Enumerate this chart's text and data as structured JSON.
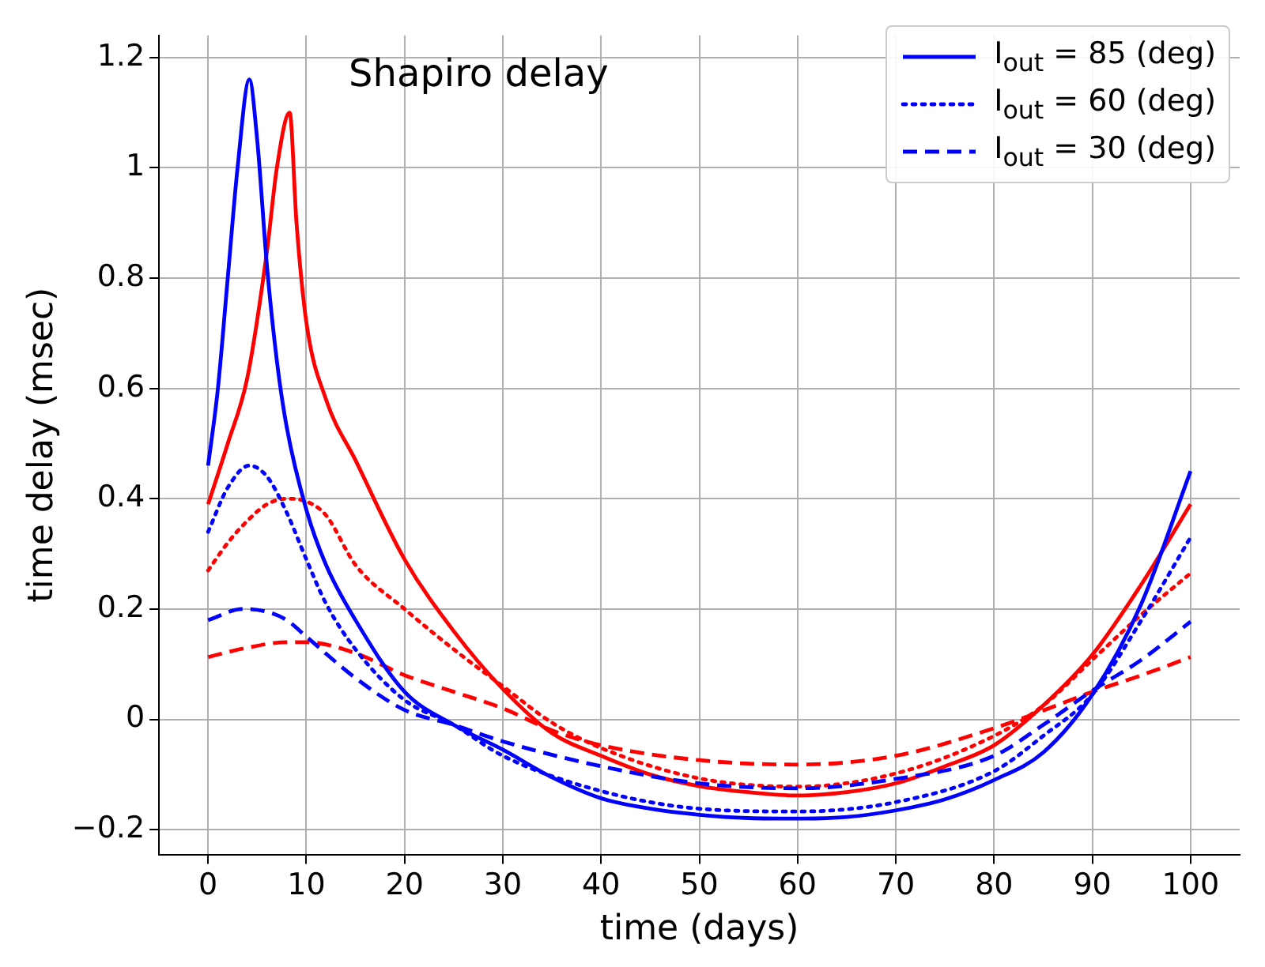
{
  "chart_data": {
    "type": "line",
    "xlabel": "time (days)",
    "ylabel": "time delay (msec)",
    "annotations": [
      "Shapiro delay"
    ],
    "xlim": [
      -5,
      105
    ],
    "xticks": [
      0,
      10,
      20,
      30,
      40,
      50,
      60,
      70,
      80,
      90,
      100
    ],
    "ylim": [
      -0.245,
      1.24
    ],
    "yticks": [
      -0.2,
      0,
      0.2,
      0.4,
      0.6,
      0.8,
      1,
      1.2
    ],
    "grid": true,
    "legend": "top right",
    "marker": "none",
    "series": [
      {
        "name": "I$_{out}$ = 85 (deg)",
        "color": "#0000ff",
        "line_style": "solid",
        "x": [
          0,
          1,
          2,
          3,
          4.2,
          5,
          6,
          7,
          8,
          10,
          12,
          15,
          20,
          25,
          30,
          35,
          40,
          45,
          50,
          55,
          60,
          65,
          70,
          75,
          80,
          85,
          90,
          95,
          100
        ],
        "values": [
          0.46,
          0.6,
          0.8,
          1.0,
          1.16,
          1.05,
          0.82,
          0.65,
          0.53,
          0.38,
          0.28,
          0.18,
          0.05,
          -0.01,
          -0.055,
          -0.105,
          -0.143,
          -0.162,
          -0.173,
          -0.179,
          -0.18,
          -0.177,
          -0.165,
          -0.145,
          -0.11,
          -0.06,
          0.045,
          0.21,
          0.45
        ]
      },
      {
        "name": "I$_{out}$ = 60 (deg)",
        "color": "#0000ff",
        "line_style": "dotted",
        "x": [
          0,
          2,
          4.2,
          6,
          8,
          10,
          12,
          15,
          20,
          25,
          30,
          40,
          50,
          60,
          70,
          80,
          85,
          90,
          95,
          100
        ],
        "values": [
          0.34,
          0.42,
          0.46,
          0.44,
          0.375,
          0.29,
          0.21,
          0.127,
          0.035,
          -0.01,
          -0.066,
          -0.13,
          -0.162,
          -0.167,
          -0.15,
          -0.094,
          -0.03,
          0.045,
          0.18,
          0.33
        ]
      },
      {
        "name": "I$_{out}$ = 30 (deg)",
        "color": "#0000ff",
        "line_style": "dashed",
        "x": [
          0,
          3.5,
          6,
          8,
          10,
          15,
          20,
          25,
          30,
          40,
          50,
          60,
          70,
          80,
          85,
          90,
          95,
          100
        ],
        "values": [
          0.18,
          0.2,
          0.195,
          0.18,
          0.15,
          0.075,
          0.017,
          -0.01,
          -0.04,
          -0.085,
          -0.116,
          -0.125,
          -0.108,
          -0.066,
          -0.01,
          0.052,
          0.108,
          0.177
        ]
      },
      {
        "color": "#ff0000",
        "line_style": "solid",
        "x": [
          0,
          2,
          4,
          6,
          7,
          8.3,
          9,
          10,
          12,
          15,
          20,
          25,
          30,
          35,
          40,
          45,
          50,
          55,
          60,
          65,
          70,
          75,
          80,
          85,
          90,
          95,
          100
        ],
        "values": [
          0.39,
          0.5,
          0.62,
          0.85,
          1.0,
          1.1,
          0.9,
          0.72,
          0.58,
          0.47,
          0.29,
          0.16,
          0.055,
          -0.025,
          -0.066,
          -0.1,
          -0.121,
          -0.132,
          -0.138,
          -0.132,
          -0.116,
          -0.085,
          -0.047,
          0.025,
          0.117,
          0.245,
          0.39
        ]
      },
      {
        "color": "#ff0000",
        "line_style": "dotted",
        "x": [
          0,
          2,
          4,
          6,
          8,
          10,
          12,
          15,
          20,
          25,
          30,
          35,
          40,
          50,
          60,
          70,
          80,
          85,
          90,
          95,
          100
        ],
        "values": [
          0.27,
          0.32,
          0.36,
          0.39,
          0.4,
          0.395,
          0.37,
          0.28,
          0.2,
          0.127,
          0.06,
          -0.006,
          -0.052,
          -0.107,
          -0.122,
          -0.098,
          -0.03,
          0.025,
          0.108,
          0.19,
          0.265
        ]
      },
      {
        "color": "#ff0000",
        "line_style": "dashed",
        "x": [
          0,
          4,
          8,
          10,
          15,
          20,
          25,
          30,
          35,
          40,
          50,
          60,
          70,
          80,
          85,
          90,
          95,
          100
        ],
        "values": [
          0.113,
          0.13,
          0.14,
          0.14,
          0.12,
          0.08,
          0.05,
          0.02,
          -0.02,
          -0.047,
          -0.074,
          -0.082,
          -0.066,
          -0.016,
          0.016,
          0.05,
          0.08,
          0.113
        ]
      }
    ]
  }
}
